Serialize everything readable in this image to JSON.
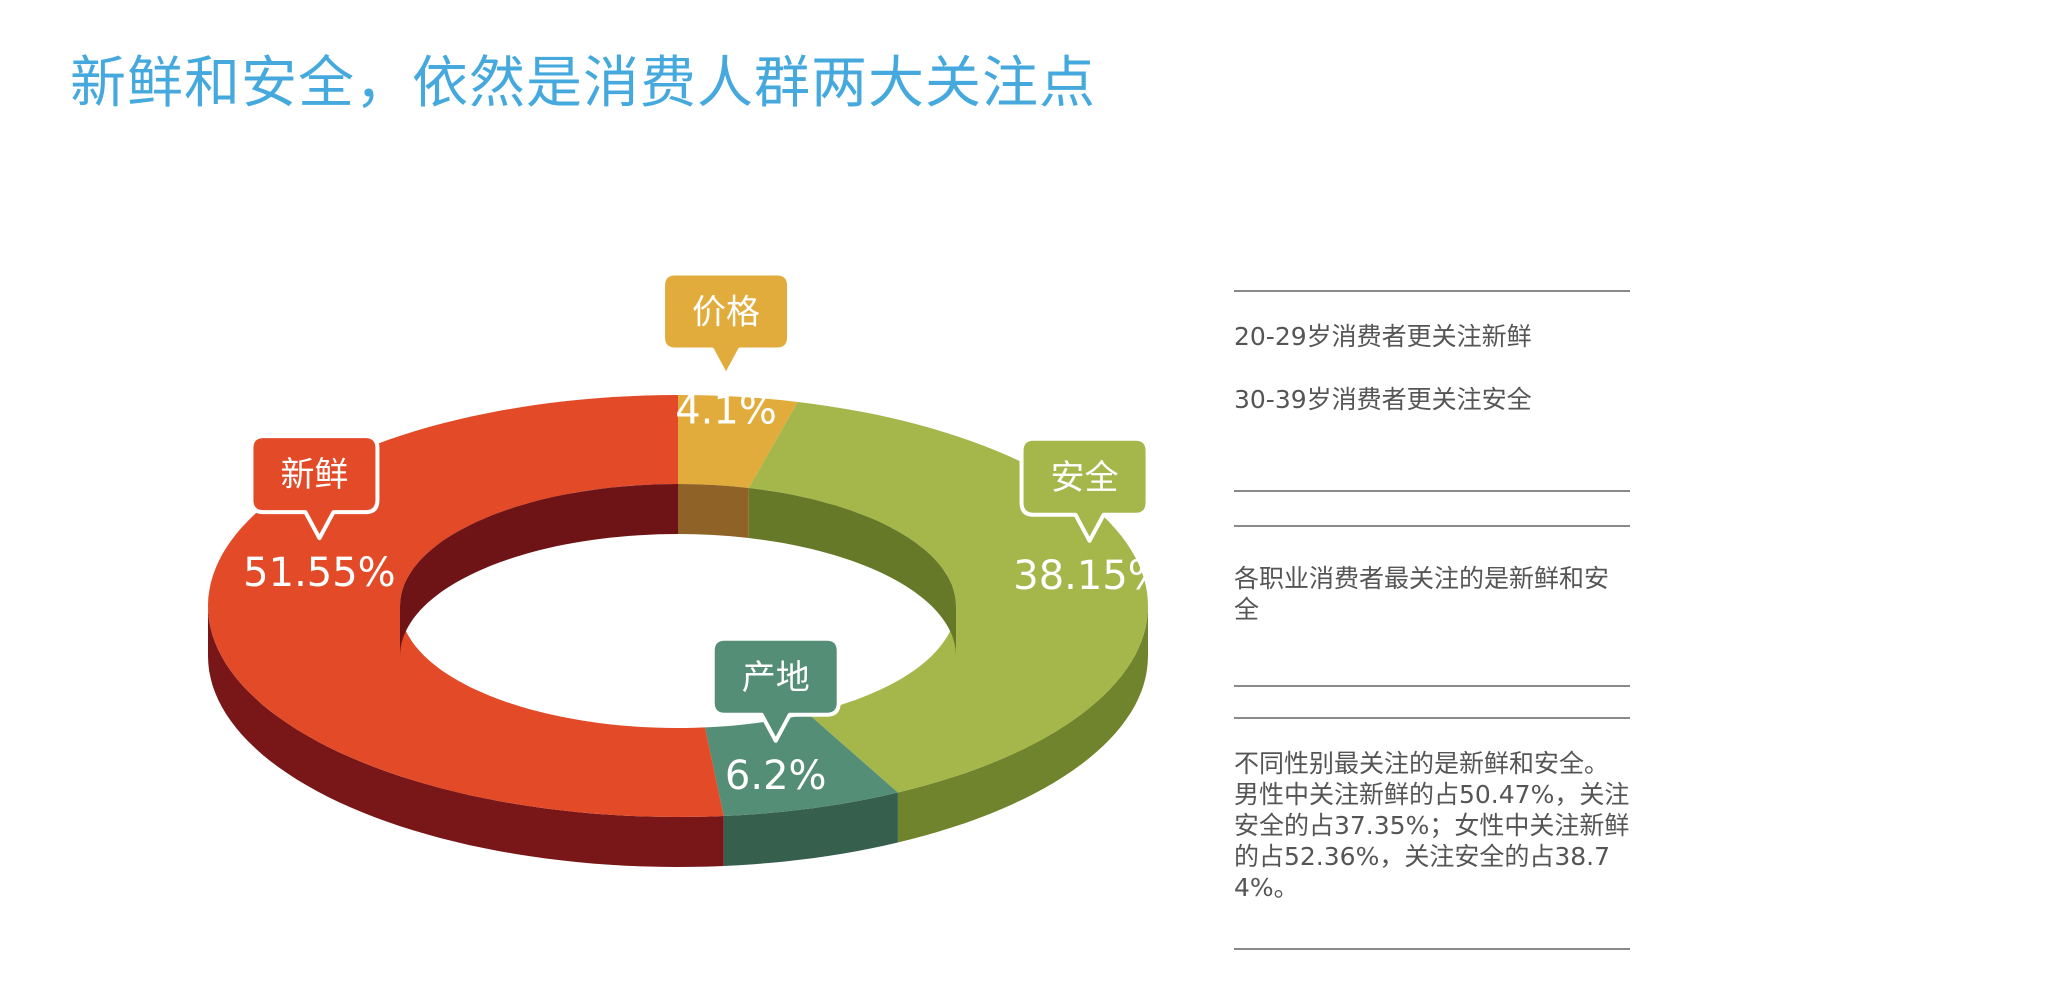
{
  "title": "新鲜和安全，依然是消费人群两大关注点",
  "colors": {
    "title": "#45a9de",
    "text": "#555555",
    "rule": "#8a8a8a"
  },
  "chart_data": {
    "type": "pie",
    "style": "3d-donut",
    "title": "",
    "slices": [
      {
        "label": "价格",
        "value": 4.1,
        "value_label": "4.1%",
        "color": "#e2ac3c",
        "side": "#9b6a2a"
      },
      {
        "label": "安全",
        "value": 38.15,
        "value_label": "38.15%",
        "color": "#a5b74b",
        "side": "#6f842c"
      },
      {
        "label": "产地",
        "value": 6.2,
        "value_label": "6.2%",
        "color": "#558e77",
        "side": "#365f4e"
      },
      {
        "label": "新鲜",
        "value": 51.55,
        "value_label": "51.55%",
        "color": "#e34a28",
        "side": "#781618"
      }
    ]
  },
  "notes": [
    "20-29岁消费者更关注新鲜",
    "30-39岁消费者更关注安全",
    "各职业消费者最关注的是新鲜和安全",
    "不同性别最关注的是新鲜和安全。男性中关注新鲜的占50.47%，关注安全的占37.35%；女性中关注新鲜的占52.36%，关注安全的占38.74%。"
  ]
}
